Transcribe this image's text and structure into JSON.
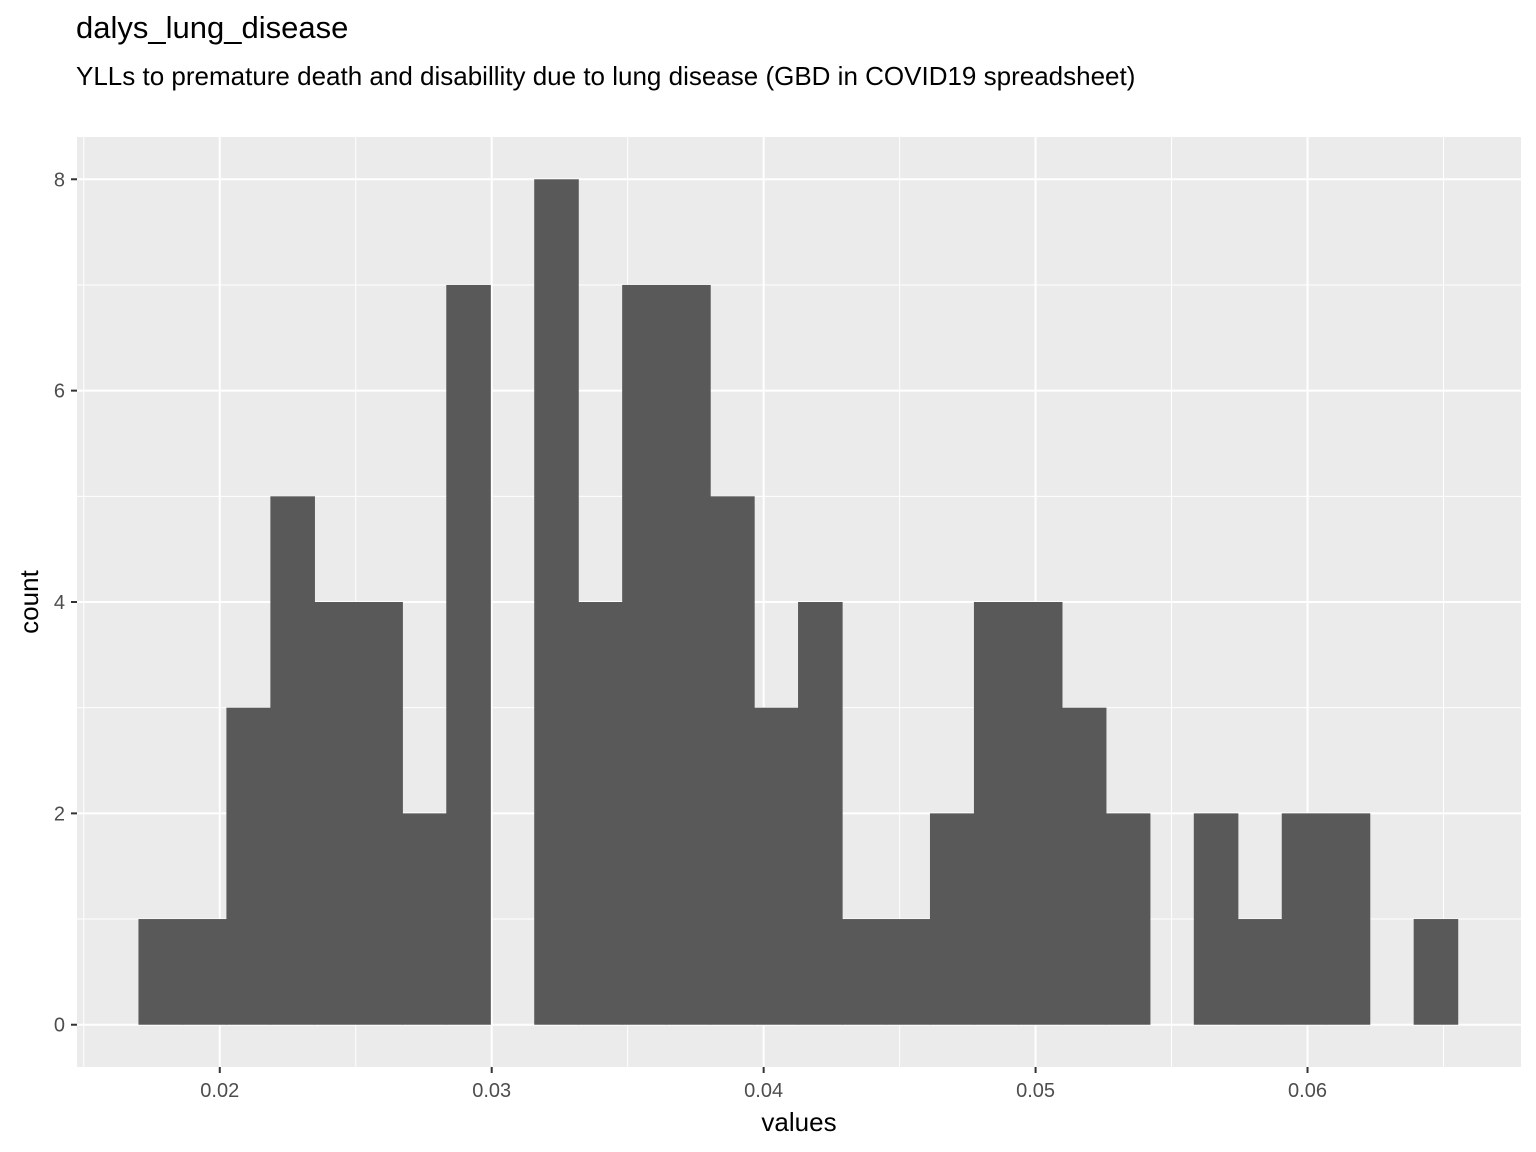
{
  "chart_data": {
    "type": "bar",
    "title": "dalys_lung_disease",
    "subtitle": "YLLs to premature death and disabillity due to lung disease (GBD in COVID19 spreadsheet)",
    "xlabel": "values",
    "ylabel": "count",
    "xlim": [
      0.01475,
      0.06785
    ],
    "ylim": [
      -0.4,
      8.4
    ],
    "x_ticks": [
      0.02,
      0.03,
      0.04,
      0.05,
      0.06
    ],
    "x_tick_labels": [
      "0.02",
      "0.03",
      "0.04",
      "0.05",
      "0.06"
    ],
    "y_ticks": [
      0,
      2,
      4,
      6,
      8
    ],
    "y_tick_labels": [
      "0",
      "2",
      "4",
      "6",
      "8"
    ],
    "bin_start": 0.01701,
    "bin_width": 0.001617,
    "counts": [
      1,
      1,
      3,
      5,
      4,
      4,
      2,
      7,
      0,
      8,
      4,
      7,
      7,
      5,
      3,
      4,
      1,
      1,
      2,
      4,
      4,
      3,
      2,
      0,
      2,
      1,
      2,
      2,
      0,
      1
    ],
    "grid": true,
    "bar_color": "#595959",
    "panel_color": "#ebebeb",
    "grid_color": "#ffffff"
  }
}
